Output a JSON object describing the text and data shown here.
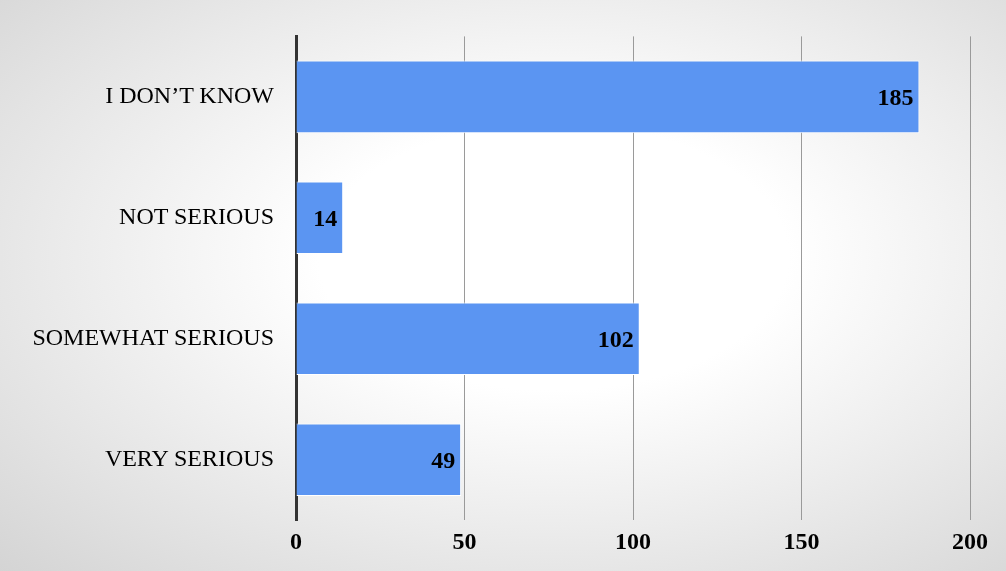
{
  "chart_data": {
    "type": "bar",
    "orientation": "horizontal",
    "categories": [
      "I DON’T KNOW",
      "NOT SERIOUS",
      "SOMEWHAT SERIOUS",
      "VERY SERIOUS"
    ],
    "values": [
      185,
      14,
      102,
      49
    ],
    "color": "#5b95f2",
    "xlim": [
      0,
      200
    ],
    "xticks": [
      0,
      50,
      100,
      150,
      200
    ],
    "grid": "x",
    "data_labels": true,
    "legend": false
  }
}
